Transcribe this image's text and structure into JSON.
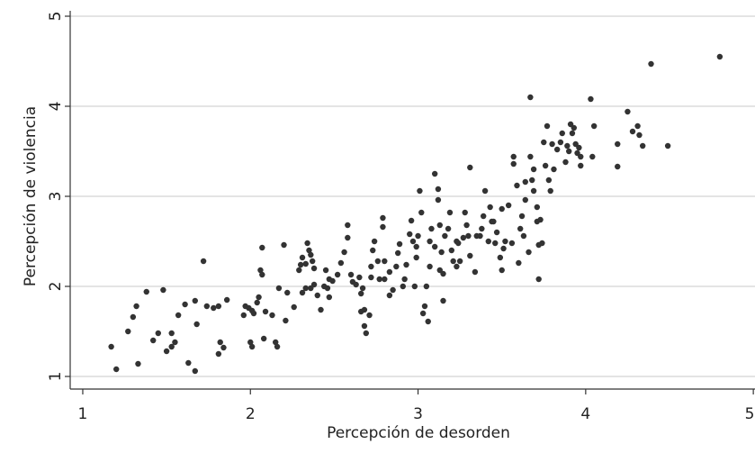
{
  "chart_data": {
    "type": "scatter",
    "x_label": "Percepción de desorden",
    "y_label": "Percepción de violencia",
    "xlim": [
      0.925,
      5.01
    ],
    "ylim": [
      0.86,
      5.06
    ],
    "xticks": [
      1,
      2,
      3,
      4,
      5
    ],
    "yticks": [
      1,
      2,
      3,
      4,
      5
    ],
    "grid": true,
    "color": "#333333",
    "x": [
      1.17,
      1.2,
      1.27,
      1.3,
      1.32,
      1.38,
      1.33,
      1.42,
      1.45,
      1.48,
      1.53,
      1.53,
      1.55,
      1.5,
      1.57,
      1.61,
      1.63,
      1.67,
      1.67,
      1.68,
      1.72,
      1.74,
      1.78,
      1.81,
      1.82,
      1.84,
      1.86,
      1.81,
      1.96,
      1.97,
      1.99,
      2.01,
      2.02,
      2.04,
      2.05,
      2.06,
      2.07,
      2.07,
      2.09,
      2.0,
      2.01,
      2.08,
      2.15,
      2.16,
      2.13,
      2.17,
      2.2,
      2.21,
      2.22,
      2.26,
      2.29,
      2.3,
      2.31,
      2.33,
      2.34,
      2.35,
      2.36,
      2.37,
      2.38,
      2.38,
      2.31,
      2.33,
      2.36,
      2.4,
      2.42,
      2.44,
      2.46,
      2.47,
      2.45,
      2.47,
      2.49,
      2.52,
      2.54,
      2.56,
      2.58,
      2.58,
      2.6,
      2.61,
      2.63,
      2.65,
      2.66,
      2.66,
      2.67,
      2.68,
      2.68,
      2.69,
      2.71,
      2.72,
      2.72,
      2.73,
      2.74,
      2.76,
      2.77,
      2.79,
      2.79,
      2.8,
      2.8,
      2.83,
      2.83,
      2.85,
      2.87,
      2.88,
      2.89,
      2.91,
      2.92,
      2.93,
      2.95,
      2.96,
      2.97,
      2.98,
      2.99,
      2.99,
      3.0,
      3.01,
      3.02,
      3.03,
      3.04,
      3.05,
      3.06,
      3.07,
      3.07,
      3.08,
      3.1,
      3.1,
      3.12,
      3.12,
      3.13,
      3.13,
      3.14,
      3.15,
      3.15,
      3.16,
      3.18,
      3.19,
      3.2,
      3.21,
      3.23,
      3.23,
      3.24,
      3.25,
      3.27,
      3.28,
      3.29,
      3.3,
      3.31,
      3.31,
      3.34,
      3.35,
      3.37,
      3.38,
      3.39,
      3.4,
      3.42,
      3.43,
      3.44,
      3.45,
      3.46,
      3.47,
      3.49,
      3.5,
      3.5,
      3.51,
      3.52,
      3.54,
      3.56,
      3.57,
      3.57,
      3.59,
      3.6,
      3.61,
      3.62,
      3.63,
      3.64,
      3.64,
      3.66,
      3.67,
      3.67,
      3.68,
      3.69,
      3.69,
      3.71,
      3.71,
      3.72,
      3.72,
      3.73,
      3.74,
      3.75,
      3.76,
      3.77,
      3.78,
      3.79,
      3.8,
      3.81,
      3.83,
      3.85,
      3.86,
      3.88,
      3.89,
      3.9,
      3.91,
      3.92,
      3.93,
      3.94,
      3.95,
      3.96,
      3.97,
      3.97,
      4.03,
      4.04,
      4.05,
      4.19,
      4.19,
      4.25,
      4.28,
      4.31,
      4.32,
      4.34,
      4.39,
      4.49,
      4.8
    ],
    "y": [
      1.33,
      1.08,
      1.5,
      1.66,
      1.78,
      1.94,
      1.14,
      1.4,
      1.48,
      1.96,
      1.48,
      1.33,
      1.38,
      1.28,
      1.68,
      1.8,
      1.15,
      1.06,
      1.84,
      1.58,
      2.28,
      1.78,
      1.76,
      1.78,
      1.38,
      1.32,
      1.85,
      1.25,
      1.68,
      1.78,
      1.76,
      1.73,
      1.7,
      1.82,
      1.88,
      2.18,
      2.43,
      2.13,
      1.72,
      1.38,
      1.33,
      1.42,
      1.38,
      1.33,
      1.68,
      1.98,
      2.46,
      1.62,
      1.93,
      1.77,
      2.18,
      2.24,
      2.32,
      2.25,
      2.48,
      2.4,
      2.35,
      2.28,
      2.2,
      2.02,
      1.93,
      1.98,
      1.98,
      1.9,
      1.74,
      2.0,
      1.98,
      1.88,
      2.18,
      2.08,
      2.06,
      2.13,
      2.26,
      2.38,
      2.54,
      2.68,
      2.13,
      2.05,
      2.02,
      2.1,
      1.92,
      1.72,
      1.98,
      1.74,
      1.56,
      1.48,
      1.68,
      2.1,
      2.22,
      2.4,
      2.5,
      2.28,
      2.08,
      2.66,
      2.76,
      2.28,
      2.08,
      2.16,
      1.9,
      1.96,
      2.22,
      2.37,
      2.47,
      2.0,
      2.08,
      2.24,
      2.58,
      2.73,
      2.5,
      2.0,
      2.32,
      2.44,
      2.56,
      3.06,
      2.82,
      1.7,
      1.78,
      2.0,
      1.61,
      2.22,
      2.5,
      2.64,
      2.44,
      3.25,
      3.08,
      2.96,
      2.68,
      2.18,
      2.38,
      2.14,
      1.84,
      2.56,
      2.64,
      2.82,
      2.4,
      2.28,
      2.22,
      2.5,
      2.48,
      2.28,
      2.54,
      2.82,
      2.68,
      2.56,
      3.32,
      2.34,
      2.16,
      2.56,
      2.56,
      2.64,
      2.78,
      3.06,
      2.5,
      2.88,
      2.72,
      2.72,
      2.48,
      2.6,
      2.32,
      2.86,
      2.18,
      2.42,
      2.5,
      2.9,
      2.48,
      3.44,
      3.36,
      3.12,
      2.26,
      2.64,
      2.78,
      2.56,
      3.16,
      2.96,
      2.38,
      4.1,
      3.44,
      3.18,
      3.3,
      3.06,
      2.88,
      2.72,
      2.46,
      2.08,
      2.74,
      2.48,
      3.6,
      3.34,
      3.78,
      3.18,
      3.06,
      3.58,
      3.3,
      3.52,
      3.6,
      3.7,
      3.38,
      3.56,
      3.5,
      3.8,
      3.7,
      3.76,
      3.58,
      3.48,
      3.54,
      3.34,
      3.44,
      4.08,
      3.44,
      3.78,
      3.58,
      3.33,
      3.94,
      3.72,
      3.78,
      3.68,
      3.56,
      4.47,
      3.56,
      4.55
    ]
  }
}
